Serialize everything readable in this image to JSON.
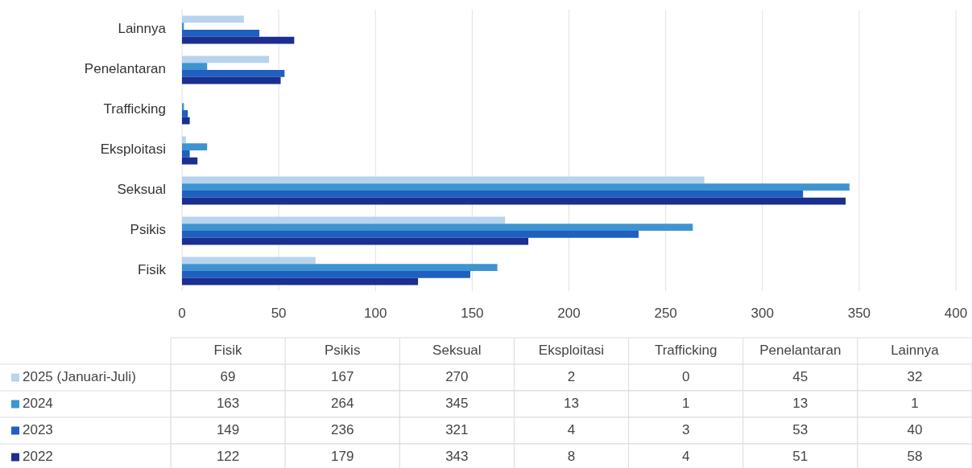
{
  "chart_data": [
    {
      "type": "bar",
      "orientation": "horizontal",
      "categories": [
        "Lainnya",
        "Penelantaran",
        "Trafficking",
        "Eksploitasi",
        "Seksual",
        "Psikis",
        "Fisik"
      ],
      "series": [
        {
          "name": "2025 (Januari-Juli)",
          "color": "#b8d3ee",
          "values": [
            32,
            45,
            0,
            2,
            270,
            167,
            69
          ]
        },
        {
          "name": "2024",
          "color": "#3e94d1",
          "values": [
            1,
            13,
            1,
            13,
            345,
            264,
            163
          ]
        },
        {
          "name": "2023",
          "color": "#1f5fc0",
          "values": [
            40,
            53,
            3,
            4,
            321,
            236,
            149
          ]
        },
        {
          "name": "2022",
          "color": "#1a2f8f",
          "values": [
            58,
            51,
            4,
            8,
            343,
            179,
            122
          ]
        }
      ],
      "xlim": [
        0,
        400
      ],
      "xticks": [
        0,
        50,
        100,
        150,
        200,
        250,
        300,
        350,
        400
      ],
      "grid": "x",
      "legend": "bottom left"
    },
    {
      "type": "other",
      "categories": [
        "Fisik",
        "Psikis",
        "Seksual",
        "Eksploitasi",
        "Trafficking",
        "Penelantaran",
        "Lainnya"
      ],
      "data_labels": true,
      "series": [
        {
          "values": [
            69,
            167,
            270,
            2,
            0,
            45,
            32
          ]
        },
        {
          "values": [
            163,
            264,
            345,
            13,
            1,
            13,
            1
          ]
        },
        {
          "values": [
            149,
            236,
            321,
            4,
            3,
            53,
            40
          ]
        },
        {
          "values": [
            122,
            179,
            343,
            8,
            4,
            51,
            58
          ]
        }
      ]
    }
  ]
}
